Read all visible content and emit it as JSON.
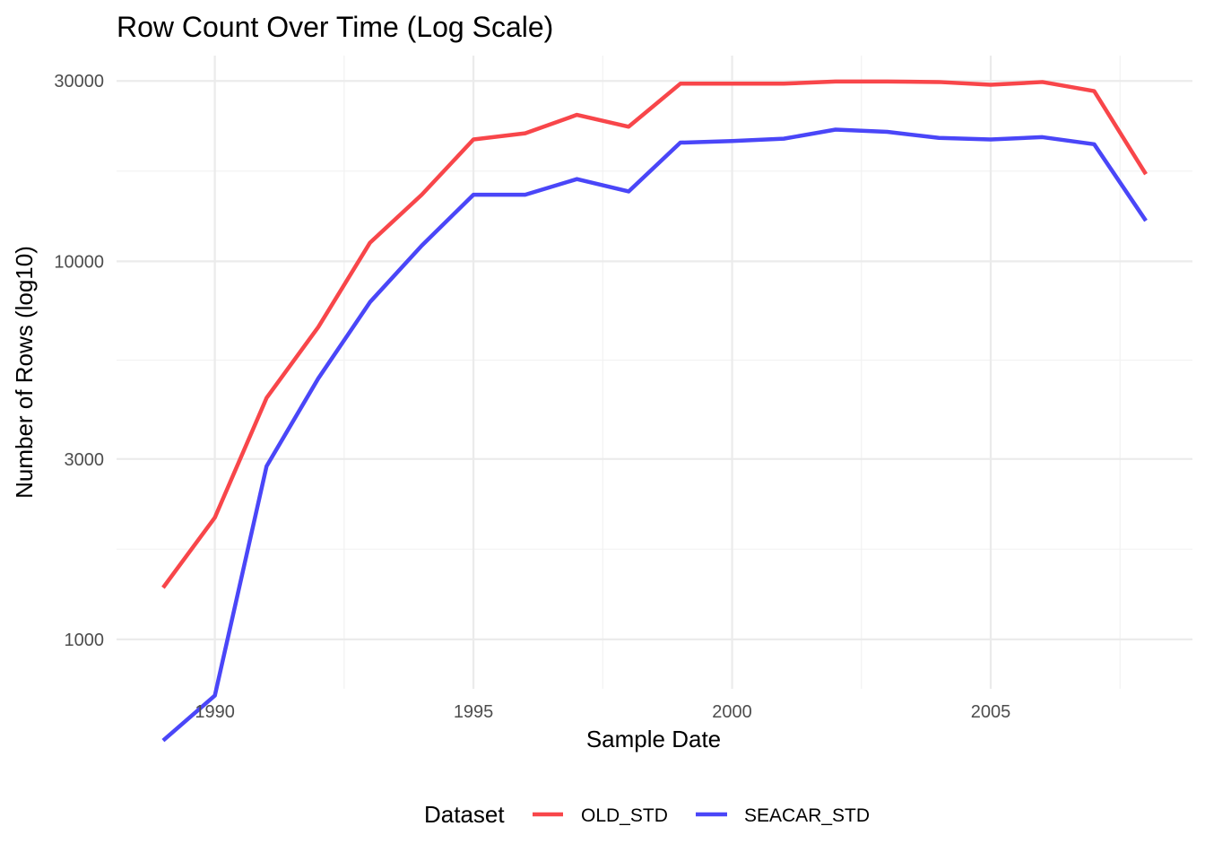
{
  "chart_data": {
    "type": "line",
    "title": "Row Count Over Time (Log Scale)",
    "xlabel": "Sample Date",
    "ylabel": "Number of Rows (log10)",
    "y_scale": "log10",
    "grid": true,
    "legend_position": "bottom",
    "legend_title": "Dataset",
    "xlim": [
      1988.1,
      2008.9
    ],
    "ylim": [
      740,
      35000
    ],
    "x_ticks": [
      1990,
      1995,
      2000,
      2005
    ],
    "x_tick_labels": [
      "1990",
      "1995",
      "2000",
      "2005"
    ],
    "y_ticks": [
      1000,
      3000,
      10000,
      30000
    ],
    "y_tick_labels": [
      "1000",
      "3000",
      "10000",
      "30000"
    ],
    "x": [
      1989,
      1990,
      1991,
      1992,
      1993,
      1994,
      1995,
      1996,
      1997,
      1998,
      1999,
      2000,
      2001,
      2002,
      2003,
      2004,
      2005,
      2006,
      2007,
      2008
    ],
    "series": [
      {
        "name": "OLD_STD",
        "color": "#f8464a",
        "values": [
          1370,
          2100,
          4350,
          6700,
          11200,
          15000,
          21000,
          21800,
          24400,
          22700,
          29500,
          29500,
          29500,
          29900,
          29900,
          29800,
          29300,
          29800,
          28200,
          17000
        ]
      },
      {
        "name": "SEACAR_STD",
        "color": "#4a46f8",
        "values": [
          540,
          710,
          2870,
          4900,
          7800,
          11000,
          15000,
          15000,
          16500,
          15300,
          20600,
          20800,
          21100,
          22300,
          22000,
          21200,
          21000,
          21300,
          20400,
          12800
        ]
      }
    ]
  }
}
